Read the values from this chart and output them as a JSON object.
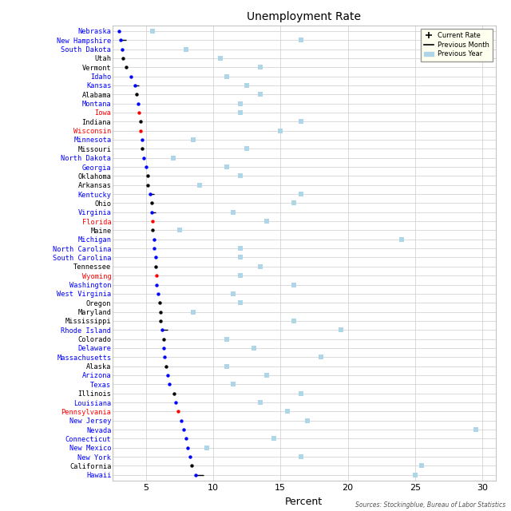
{
  "title": "Unemployment Rate",
  "xlabel": "Percent",
  "source": "Sources: Stockingblue, Bureau of Labor Statistics",
  "states": [
    "Nebraska",
    "New Hampshire",
    "South Dakota",
    "Utah",
    "Vermont",
    "Idaho",
    "Kansas",
    "Alabama",
    "Montana",
    "Iowa",
    "Indiana",
    "Wisconsin",
    "Minnesota",
    "Missouri",
    "North Dakota",
    "Georgia",
    "Oklahoma",
    "Arkansas",
    "Kentucky",
    "Ohio",
    "Virginia",
    "Florida",
    "Maine",
    "Michigan",
    "North Carolina",
    "South Carolina",
    "Tennessee",
    "Wyoming",
    "Washington",
    "West Virginia",
    "Oregon",
    "Maryland",
    "Mississippi",
    "Rhode Island",
    "Colorado",
    "Delaware",
    "Massachusetts",
    "Alaska",
    "Arizona",
    "Texas",
    "Illinois",
    "Louisiana",
    "Pennsylvania",
    "New Jersey",
    "Nevada",
    "Connecticut",
    "New Mexico",
    "New York",
    "California",
    "Hawaii"
  ],
  "current_rate": [
    3.0,
    3.1,
    3.2,
    3.3,
    3.5,
    3.9,
    4.2,
    4.3,
    4.4,
    4.5,
    4.6,
    4.6,
    4.7,
    4.7,
    4.8,
    5.0,
    5.1,
    5.1,
    5.3,
    5.4,
    5.4,
    5.5,
    5.5,
    5.6,
    5.6,
    5.7,
    5.7,
    5.8,
    5.8,
    5.9,
    6.0,
    6.1,
    6.1,
    6.2,
    6.3,
    6.3,
    6.4,
    6.5,
    6.6,
    6.7,
    7.1,
    7.2,
    7.4,
    7.6,
    7.8,
    8.0,
    8.1,
    8.3,
    8.4,
    8.7
  ],
  "prev_month": [
    3.0,
    3.5,
    3.2,
    3.3,
    3.5,
    3.9,
    4.5,
    4.3,
    4.4,
    4.5,
    4.6,
    4.6,
    4.7,
    4.7,
    4.8,
    5.0,
    5.1,
    5.1,
    5.6,
    5.4,
    5.7,
    5.5,
    5.5,
    5.6,
    5.6,
    5.7,
    5.7,
    5.8,
    5.8,
    5.9,
    6.0,
    6.1,
    6.1,
    6.6,
    6.3,
    6.3,
    6.4,
    6.5,
    6.6,
    6.7,
    7.1,
    7.2,
    7.4,
    7.6,
    7.8,
    8.0,
    8.1,
    8.3,
    8.4,
    9.3
  ],
  "prev_year": [
    5.5,
    16.5,
    8.0,
    10.5,
    13.5,
    11.0,
    12.5,
    13.5,
    12.0,
    12.0,
    16.5,
    15.0,
    8.5,
    12.5,
    7.0,
    11.0,
    12.0,
    9.0,
    16.5,
    16.0,
    11.5,
    14.0,
    7.5,
    24.0,
    12.0,
    12.0,
    13.5,
    12.0,
    16.0,
    11.5,
    12.0,
    8.5,
    16.0,
    19.5,
    11.0,
    13.0,
    18.0,
    11.0,
    14.0,
    11.5,
    16.5,
    13.5,
    15.5,
    17.0,
    29.5,
    14.5,
    9.5,
    16.5,
    25.5,
    25.0
  ],
  "dot_colors": [
    "blue",
    "blue",
    "blue",
    "black",
    "black",
    "blue",
    "blue",
    "black",
    "blue",
    "red",
    "black",
    "red",
    "blue",
    "black",
    "blue",
    "blue",
    "black",
    "black",
    "blue",
    "black",
    "blue",
    "red",
    "black",
    "blue",
    "blue",
    "blue",
    "black",
    "red",
    "blue",
    "blue",
    "black",
    "black",
    "black",
    "blue",
    "black",
    "blue",
    "blue",
    "black",
    "blue",
    "blue",
    "black",
    "blue",
    "red",
    "blue",
    "blue",
    "blue",
    "blue",
    "blue",
    "black",
    "blue"
  ],
  "xlim": [
    2.5,
    31
  ],
  "xticks": [
    5,
    10,
    15,
    20,
    25,
    30
  ],
  "fig_width": 6.4,
  "fig_height": 6.4,
  "dpi": 100
}
